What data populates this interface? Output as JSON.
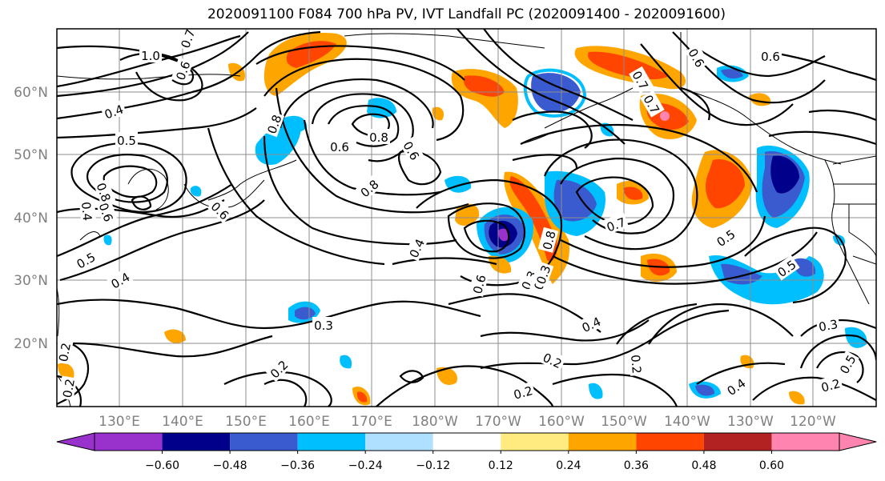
{
  "title": "2020091100 F084 700 hPa PV, IVT Landfall PC (2020091400 - 2020091600)",
  "lat_labels": [
    "60°N",
    "50°N",
    "40°N",
    "30°N",
    "20°N"
  ],
  "lon_labels": [
    "130°E",
    "140°E",
    "150°E",
    "160°E",
    "170°E",
    "180°W",
    "170°W",
    "160°W",
    "150°W",
    "140°W",
    "130°W",
    "120°W"
  ],
  "colorbar": {
    "colors": [
      "#9932CC",
      "#00008B",
      "#3A5BCF",
      "#00BFFF",
      "#B0E0FF",
      "#FFFFFF",
      "#FFEB80",
      "#FFA500",
      "#FF4500",
      "#B22222",
      "#FF85B0"
    ],
    "tick_labels": [
      "−0.60",
      "−0.48",
      "−0.36",
      "−0.24",
      "−0.12",
      "0.12",
      "0.24",
      "0.36",
      "0.48",
      "0.60"
    ]
  },
  "contour_labels": [
    "1.0",
    "0.7",
    "0.6",
    "0.4",
    "0.5",
    "0.8",
    "0.6",
    "0.8",
    "0.6",
    "0.8",
    "0.4",
    "0.3",
    "0.6",
    "0.6",
    "0.7",
    "0.7",
    "0.7",
    "0.6",
    "0.5",
    "0.5",
    "0.3",
    "0.4",
    "0.2",
    "0.2",
    "0.2",
    "0.3",
    "0.4",
    "0.5",
    "0.2",
    "0.4",
    "0.2",
    "0.8",
    "0.5",
    "0.4",
    "0.3",
    "0.6",
    "0.8",
    "0.6",
    "0.2",
    "0.2",
    "0.3"
  ]
}
